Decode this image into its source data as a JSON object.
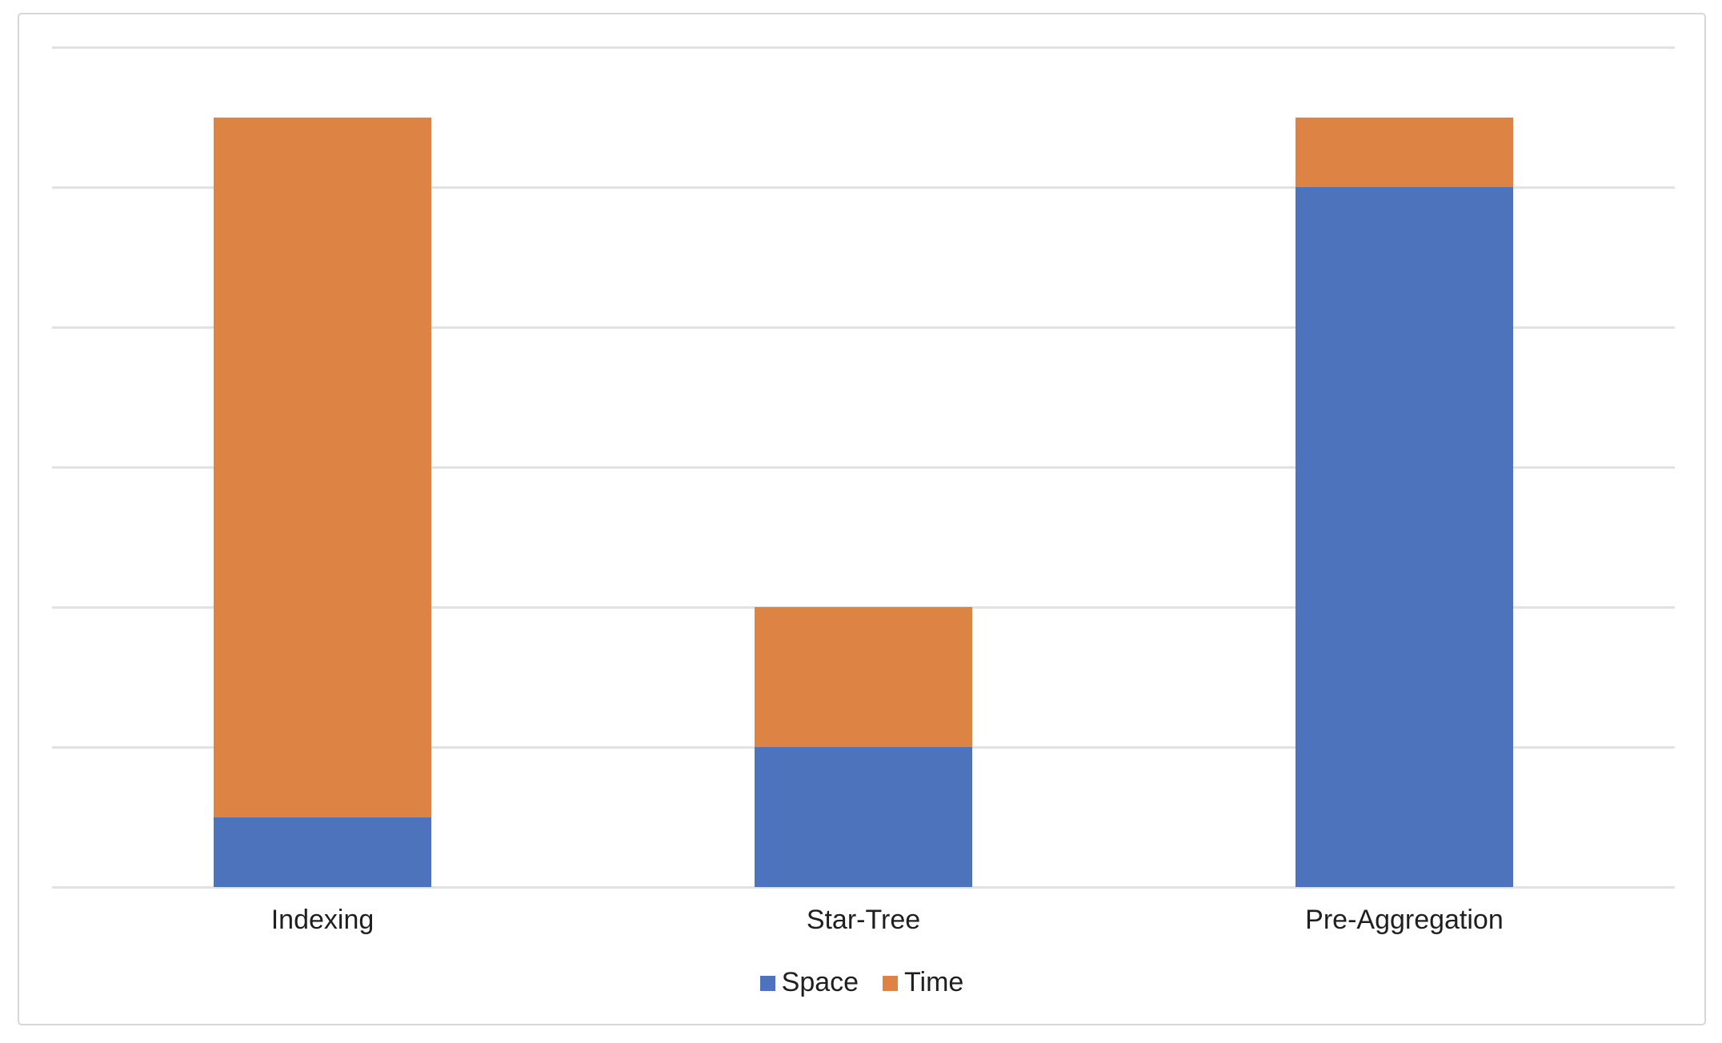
{
  "chart": {
    "background_color": "#ffffff",
    "frame_border_color": "#d7d7d7",
    "gridline_color": "#e2e2e2",
    "label_color": "#1f1f1f"
  },
  "chart_data": {
    "type": "bar",
    "stacked": true,
    "title": "",
    "xlabel": "",
    "ylabel": "",
    "categories": [
      "Indexing",
      "Star-Tree",
      "Pre-Aggregation"
    ],
    "series": [
      {
        "name": "Space",
        "color": "#4d73bc",
        "values": [
          0.5,
          1.0,
          5.0
        ]
      },
      {
        "name": "Time",
        "color": "#dd8343",
        "values": [
          5.0,
          1.0,
          0.5
        ]
      }
    ],
    "ylim": [
      0,
      6
    ],
    "gridline_step": 1,
    "y_tick_labels_visible": false,
    "grid": true,
    "legend_position": "bottom"
  }
}
